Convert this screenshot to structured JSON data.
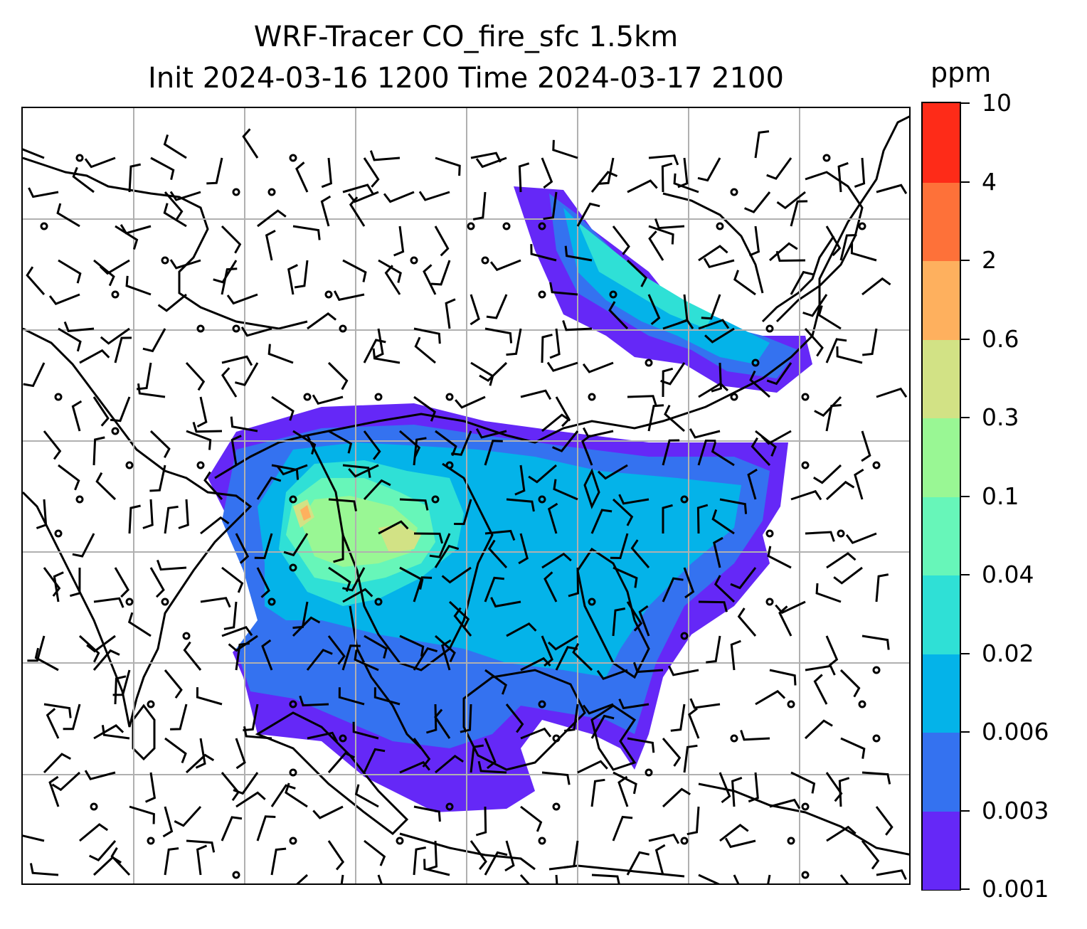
{
  "title": {
    "line1": "WRF-Tracer CO_fire_sfc 1.5km",
    "line2": "Init 2024-03-16 1200 Time 2024-03-17 2100"
  },
  "colorbar": {
    "unit": "ppm",
    "levels": [
      "0.001",
      "0.003",
      "0.006",
      "0.02",
      "0.04",
      "0.1",
      "0.3",
      "0.6",
      "2",
      "4",
      "10"
    ],
    "colors": [
      "#6528f7",
      "#3472f0",
      "#04b3e9",
      "#2fe0d6",
      "#67f6b9",
      "#99f794",
      "#d2e285",
      "#feb05e",
      "#fe7139",
      "#fe2b18"
    ]
  },
  "map": {
    "content": "Filled CO fire tracer concentration over Southeast Asia with surface wind barbs and coastlines",
    "gridlines": true
  }
}
